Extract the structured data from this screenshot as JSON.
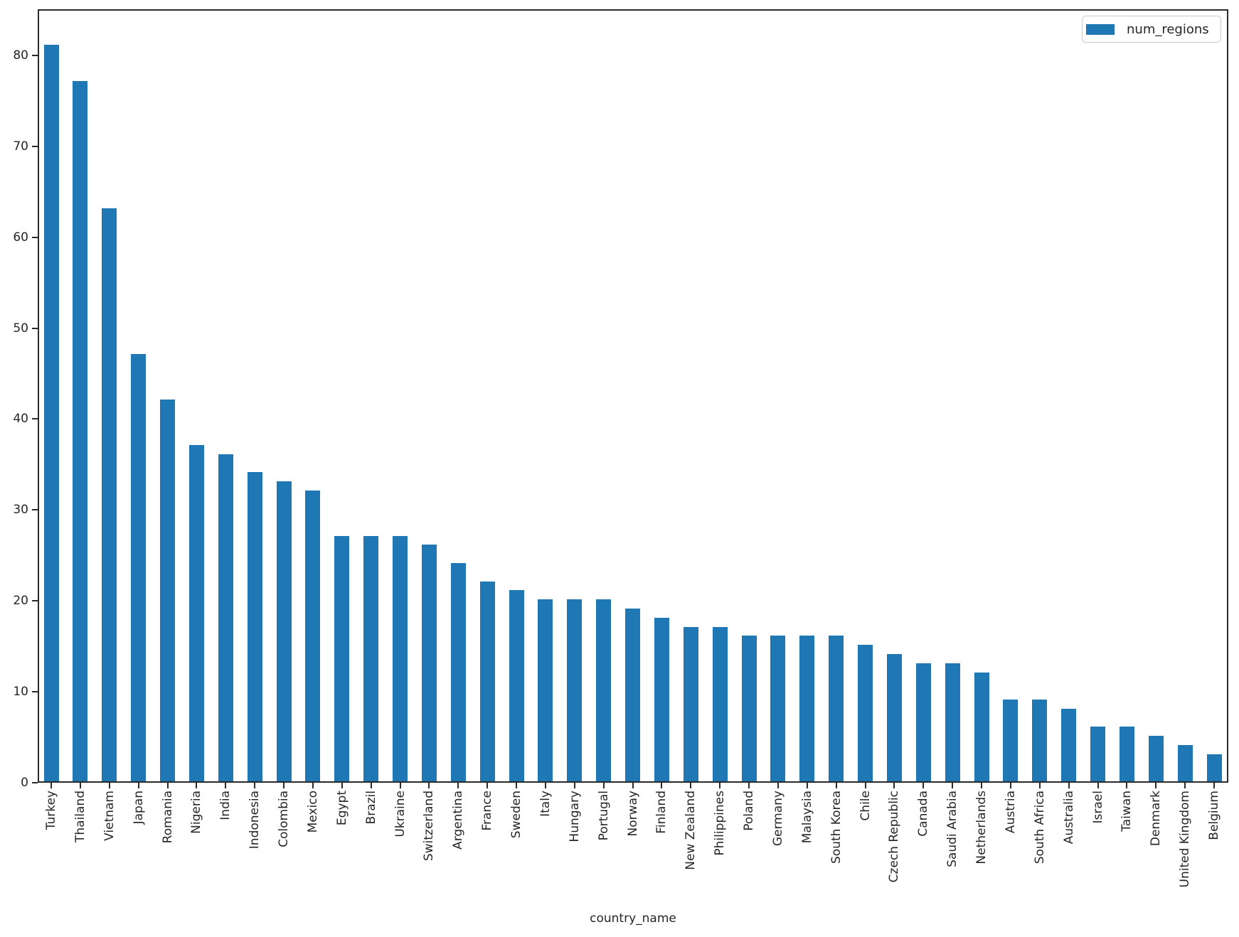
{
  "chart_data": {
    "type": "bar",
    "title": "",
    "xlabel": "country_name",
    "ylabel": "",
    "grid": false,
    "legend": {
      "position": "upper right"
    },
    "bar_color": "#1f77b4",
    "spine_color": "#2a2a2a",
    "text_color": "#262626",
    "ylim": [
      0,
      85
    ],
    "yticks": [
      0,
      10,
      20,
      30,
      40,
      50,
      60,
      70,
      80
    ],
    "x_tick_rotation": 90,
    "categories": [
      "Turkey",
      "Thailand",
      "Vietnam",
      "Japan",
      "Romania",
      "Nigeria",
      "India",
      "Indonesia",
      "Colombia",
      "Mexico",
      "Egypt",
      "Brazil",
      "Ukraine",
      "Switzerland",
      "Argentina",
      "France",
      "Sweden",
      "Italy",
      "Hungary",
      "Portugal",
      "Norway",
      "Finland",
      "New Zealand",
      "Philippines",
      "Poland",
      "Germany",
      "Malaysia",
      "South Korea",
      "Chile",
      "Czech Republic",
      "Canada",
      "Saudi Arabia",
      "Netherlands",
      "Austria",
      "South Africa",
      "Australia",
      "Israel",
      "Taiwan",
      "Denmark",
      "United Kingdom",
      "Belgium"
    ],
    "series": [
      {
        "name": "num_regions",
        "color": "#1f77b4",
        "values": [
          81,
          77,
          63,
          47,
          42,
          37,
          36,
          34,
          33,
          32,
          27,
          27,
          27,
          26,
          24,
          22,
          21,
          20,
          20,
          20,
          19,
          18,
          17,
          17,
          16,
          16,
          16,
          16,
          15,
          14,
          13,
          13,
          12,
          9,
          9,
          8,
          6,
          6,
          5,
          4,
          3
        ]
      }
    ]
  }
}
